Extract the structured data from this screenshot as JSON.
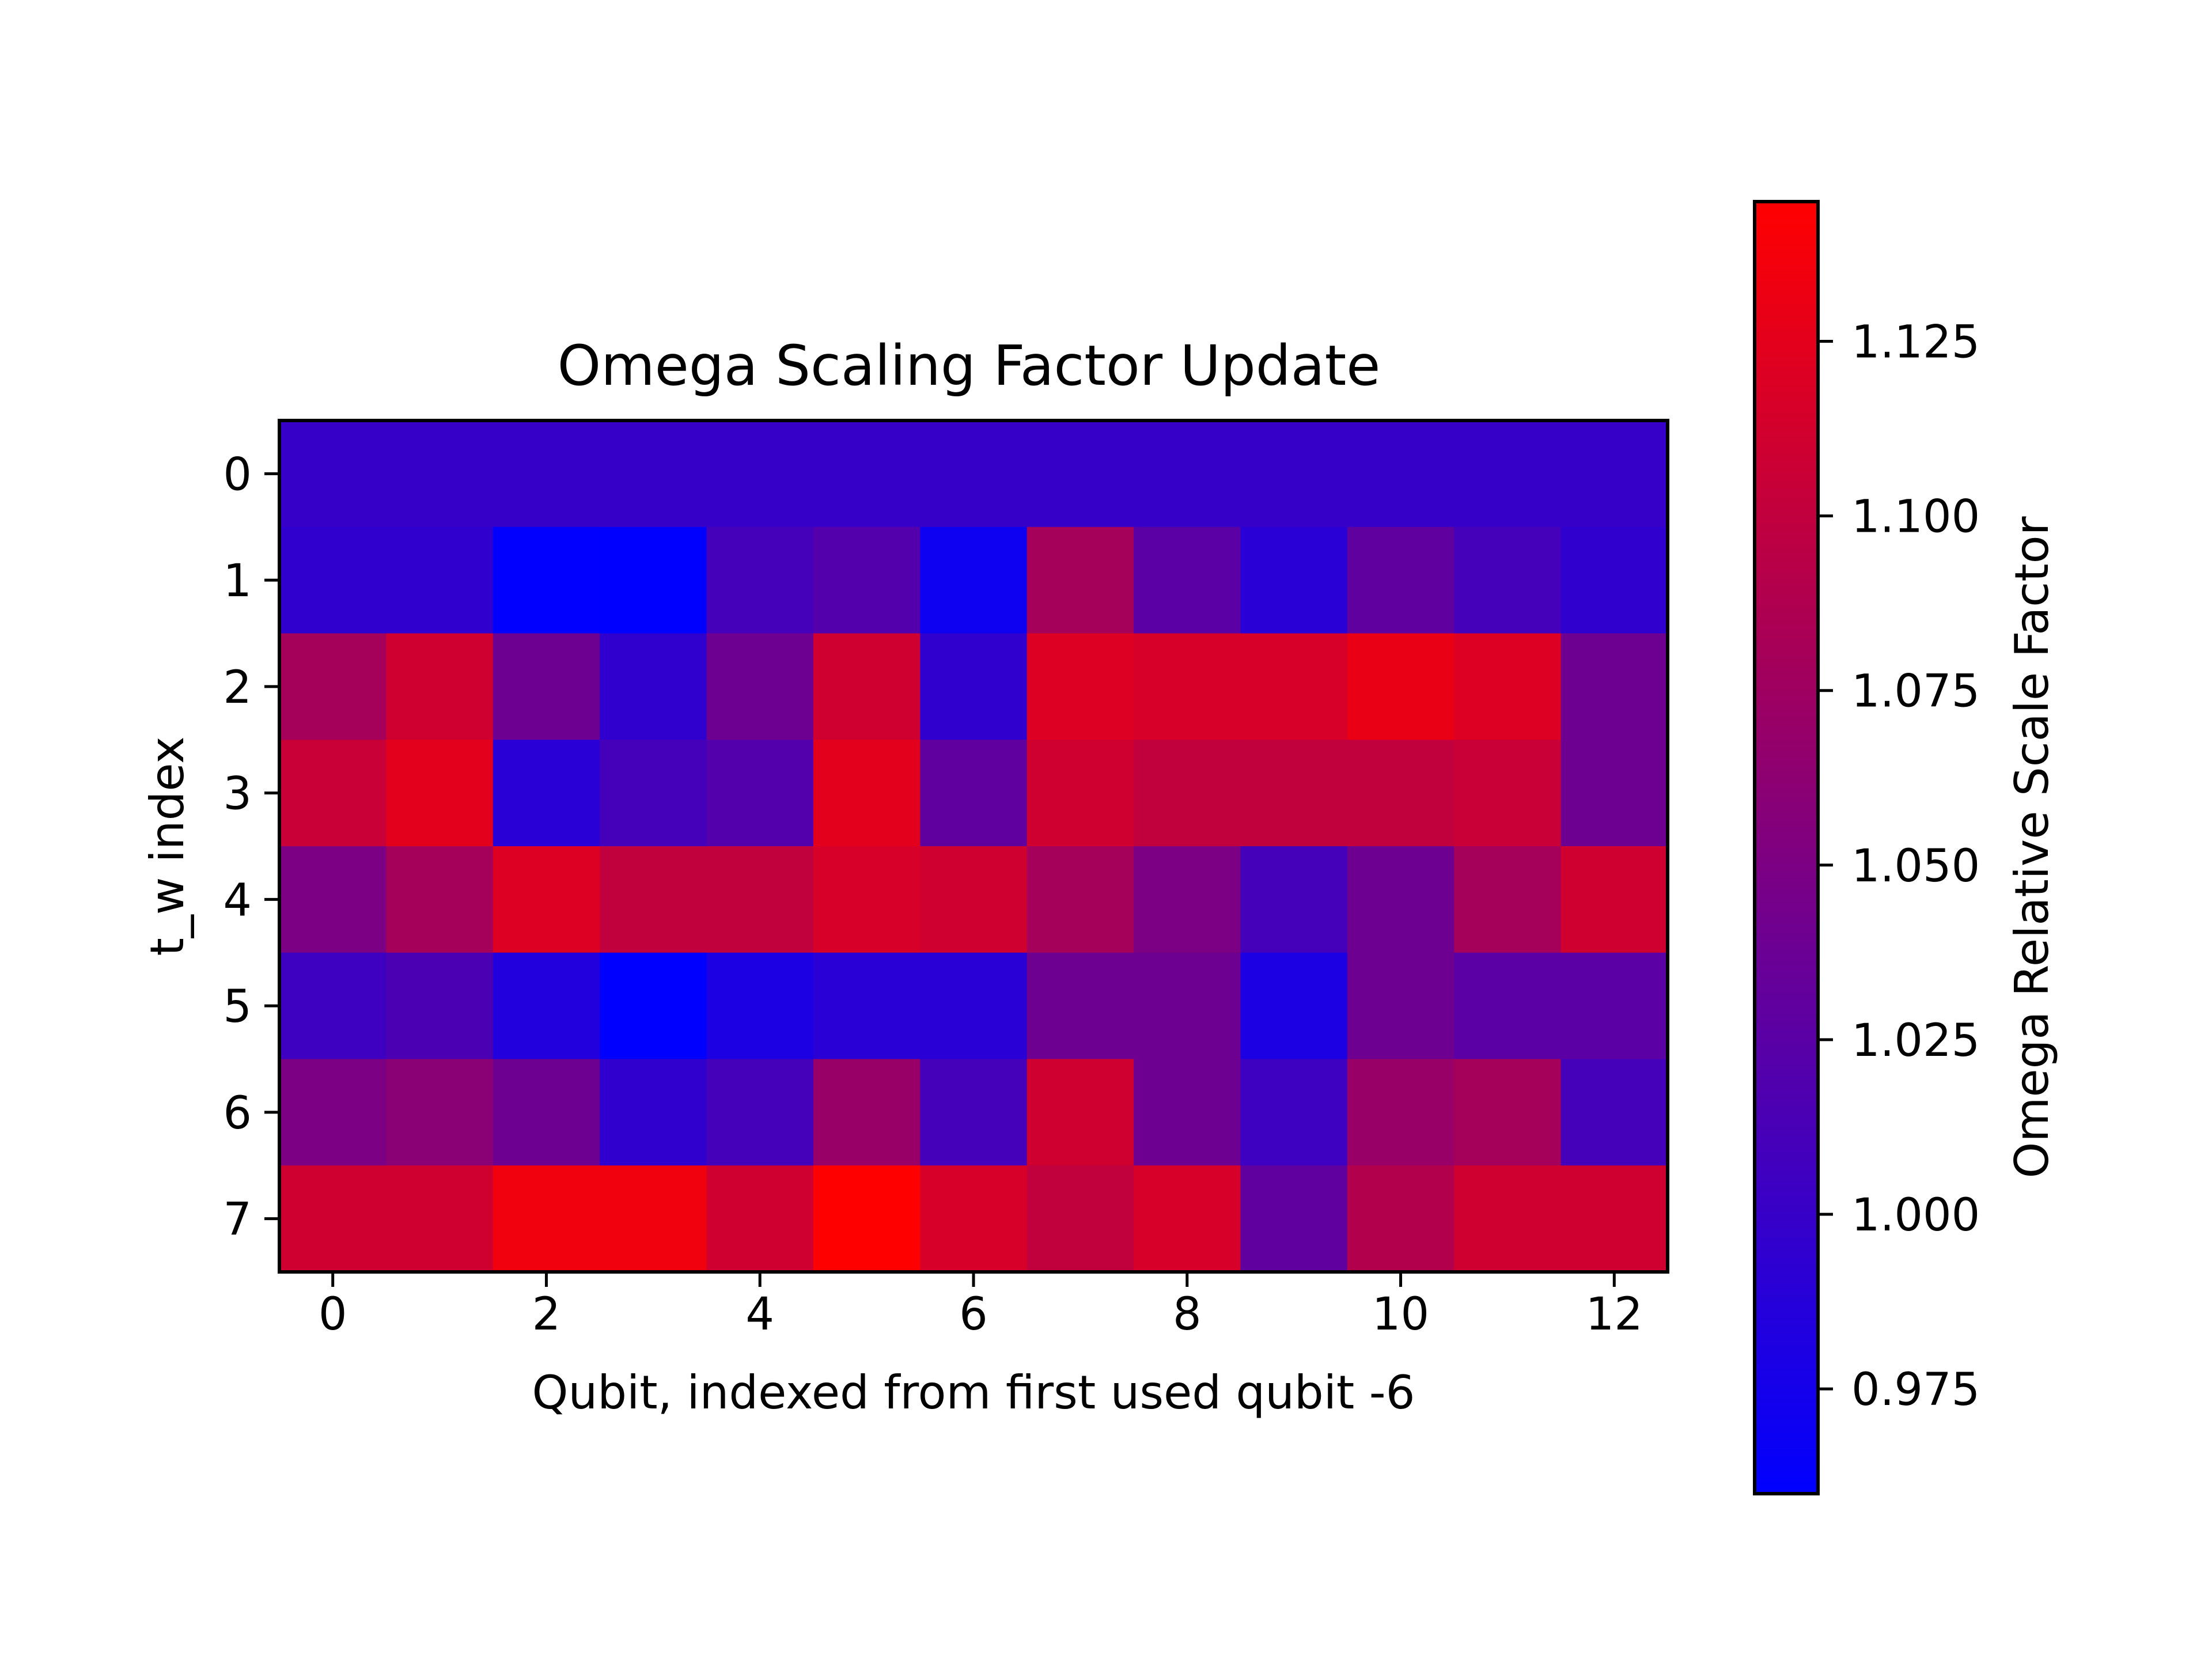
{
  "chart_data": {
    "type": "heatmap",
    "title": "Omega Scaling Factor Update",
    "xlabel": "Qubit, indexed from first used qubit -6",
    "ylabel": "t_w index",
    "x_ticks": [
      0,
      2,
      4,
      6,
      8,
      10,
      12
    ],
    "y_ticks": [
      0,
      1,
      2,
      3,
      4,
      5,
      6,
      7
    ],
    "x_count": 13,
    "y_count": 8,
    "values": [
      [
        1.0,
        1.0,
        1.0,
        1.0,
        1.0,
        1.0,
        1.0,
        1.0,
        1.0,
        1.0,
        1.0,
        1.0,
        1.0
      ],
      [
        0.995,
        0.995,
        0.961,
        0.96,
        1.01,
        1.02,
        0.97,
        1.08,
        1.025,
        0.99,
        1.03,
        1.01,
        0.995
      ],
      [
        1.08,
        1.11,
        1.04,
        0.995,
        1.04,
        1.11,
        0.995,
        1.12,
        1.115,
        1.115,
        1.13,
        1.12,
        1.04
      ],
      [
        1.105,
        1.125,
        0.99,
        1.01,
        1.02,
        1.125,
        1.03,
        1.11,
        1.1,
        1.1,
        1.1,
        1.105,
        1.04
      ],
      [
        1.05,
        1.08,
        1.12,
        1.1,
        1.1,
        1.115,
        1.11,
        1.08,
        1.05,
        1.01,
        1.04,
        1.08,
        1.11
      ],
      [
        1.005,
        1.015,
        0.985,
        0.96,
        0.98,
        0.99,
        0.99,
        1.04,
        1.04,
        0.98,
        1.04,
        1.025,
        1.025
      ],
      [
        1.05,
        1.06,
        1.04,
        0.995,
        1.01,
        1.07,
        1.01,
        1.11,
        1.04,
        1.005,
        1.07,
        1.08,
        1.01
      ],
      [
        1.11,
        1.11,
        1.135,
        1.135,
        1.11,
        1.145,
        1.115,
        1.1,
        1.115,
        1.03,
        1.09,
        1.11,
        1.11
      ]
    ],
    "colormap": {
      "min": 0.96,
      "max": 1.145,
      "low_color": "#0000ff",
      "high_color": "#ff0000"
    },
    "colorbar": {
      "label": "Omega Relative Scale Factor",
      "ticks": [
        "0.975",
        "1.000",
        "1.025",
        "1.050",
        "1.075",
        "1.100",
        "1.125"
      ]
    }
  }
}
